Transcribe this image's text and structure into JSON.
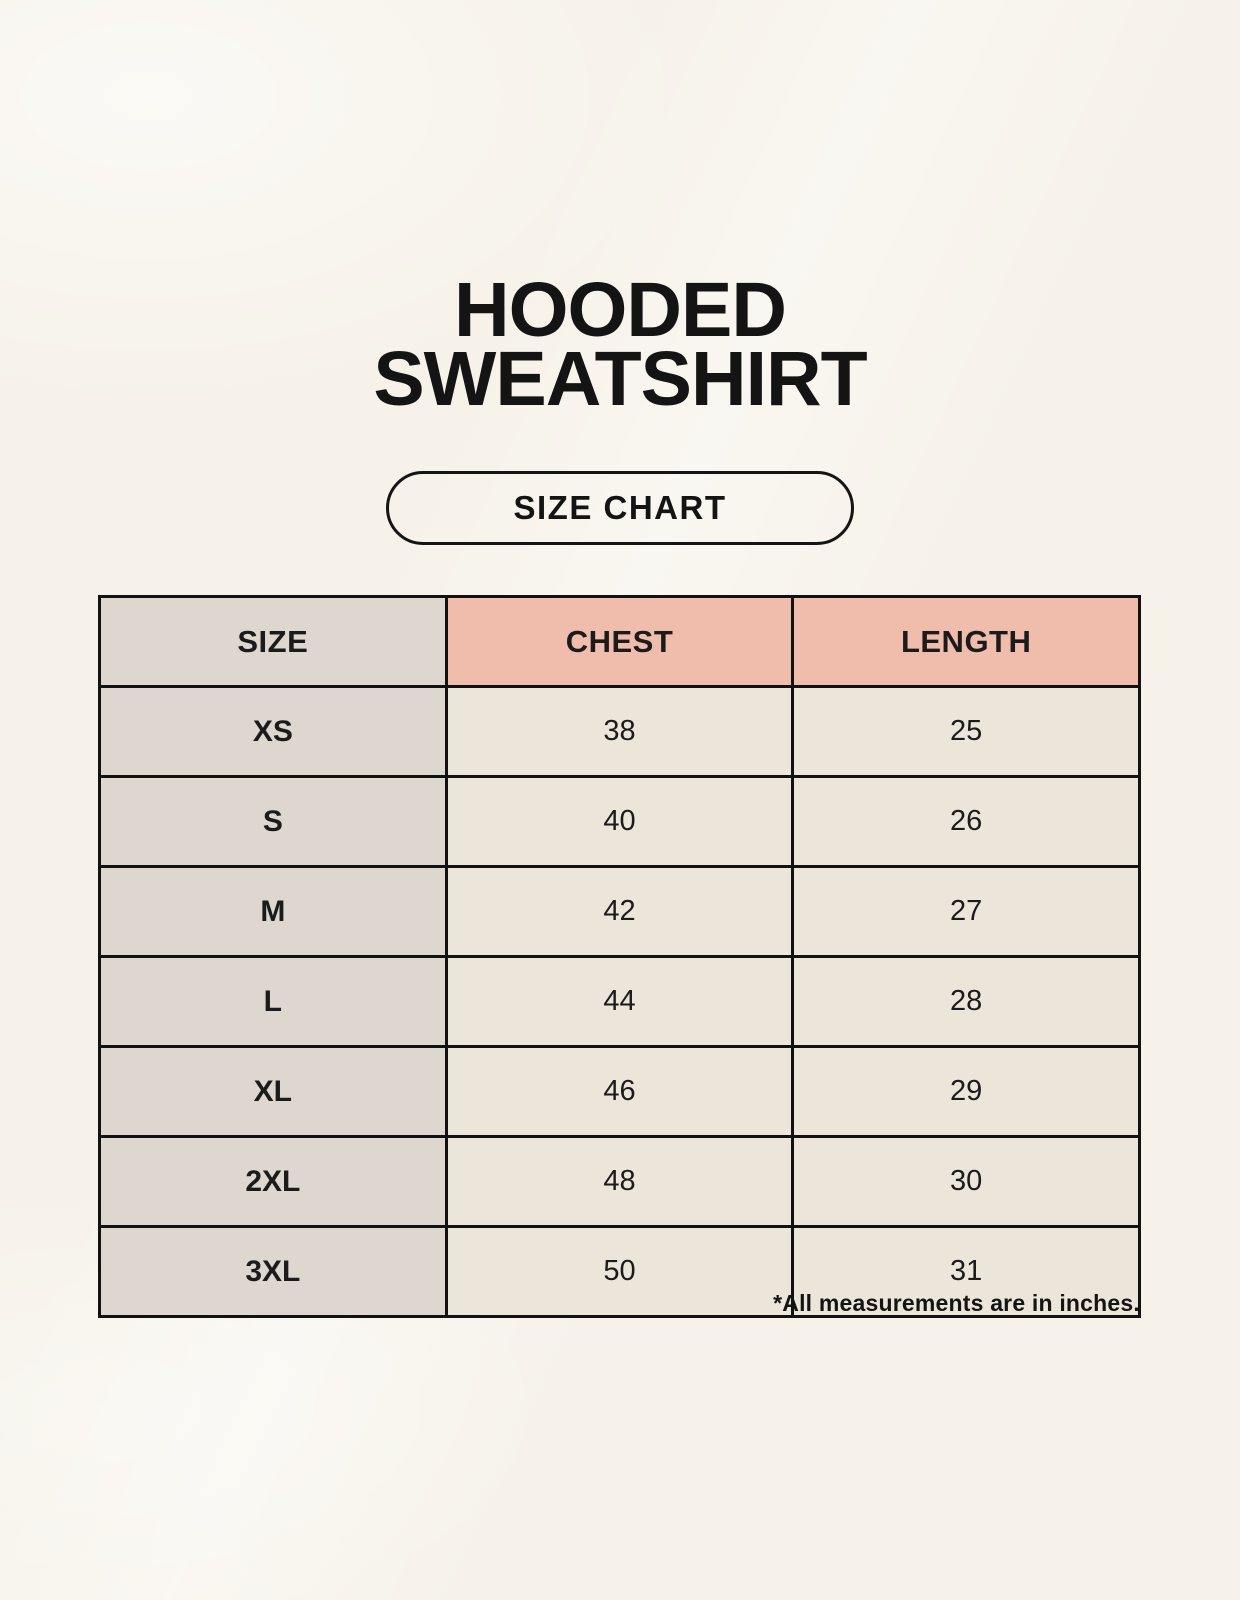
{
  "title": {
    "line1": "HOODED",
    "line2": "SWEATSHIRT"
  },
  "size_chart_badge": {
    "label": "SIZE CHART"
  },
  "table": {
    "columns": [
      "SIZE",
      "CHEST",
      "LENGTH"
    ],
    "rows": [
      {
        "size": "XS",
        "chest": "38",
        "length": "25"
      },
      {
        "size": "S",
        "chest": "40",
        "length": "26"
      },
      {
        "size": "M",
        "chest": "42",
        "length": "27"
      },
      {
        "size": "L",
        "chest": "44",
        "length": "28"
      },
      {
        "size": "XL",
        "chest": "46",
        "length": "29"
      },
      {
        "size": "2XL",
        "chest": "48",
        "length": "30"
      },
      {
        "size": "3XL",
        "chest": "50",
        "length": "31"
      }
    ]
  },
  "footnote": "*All measurements are in inches.",
  "colors": {
    "background": "#f6f2e9",
    "header_accent": "#f0bcab",
    "size_column_bg": "#ded7d0",
    "cell_bg": "#ece5d9",
    "border": "#121212",
    "text": "#141414"
  },
  "chart_data": {
    "type": "table",
    "title": "HOODED SWEATSHIRT",
    "subtitle": "SIZE CHART",
    "columns": [
      "SIZE",
      "CHEST",
      "LENGTH"
    ],
    "rows": [
      [
        "XS",
        38,
        25
      ],
      [
        "S",
        40,
        26
      ],
      [
        "M",
        42,
        27
      ],
      [
        "L",
        44,
        28
      ],
      [
        "XL",
        46,
        29
      ],
      [
        "2XL",
        48,
        30
      ],
      [
        "3XL",
        50,
        31
      ]
    ],
    "note": "*All measurements are in inches.",
    "units": "inches"
  }
}
